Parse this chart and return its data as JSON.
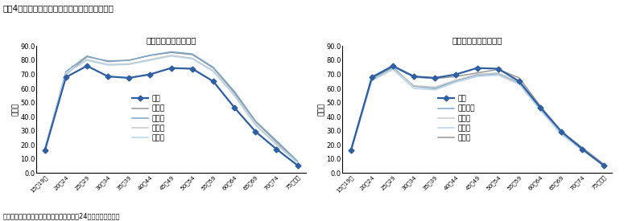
{
  "title": "図表4　女性の年齢階級別有業率（都道府県別）",
  "subtitle1": "（１）　Ｍ字が浅い県",
  "subtitle2": "（２）　Ｍ字が深い県",
  "footnote": "（備考）総務省「就業構造基本調査（平成24年）」より作成。",
  "ylabel": "（％）",
  "ylim": [
    0.0,
    90.0
  ],
  "yticks": [
    0.0,
    10.0,
    20.0,
    30.0,
    40.0,
    50.0,
    60.0,
    70.0,
    80.0,
    90.0
  ],
  "age_labels": [
    "15～19歳",
    "20～24",
    "25～29",
    "30～34",
    "35～39",
    "40～44",
    "45～49",
    "50～54",
    "55～59",
    "60～64",
    "65～69",
    "70～74",
    "75歳以上"
  ],
  "chart1_order": [
    "山形県",
    "福井県",
    "徳島県",
    "高知県",
    "全国"
  ],
  "chart1_series": {
    "全国": [
      16.0,
      68.0,
      76.0,
      68.5,
      67.5,
      70.0,
      74.5,
      74.0,
      65.0,
      46.5,
      29.5,
      17.0,
      5.5
    ],
    "山形県": [
      17.0,
      70.0,
      82.5,
      79.5,
      80.0,
      83.5,
      85.5,
      84.0,
      74.5,
      57.0,
      36.5,
      22.0,
      8.0
    ],
    "福井県": [
      17.0,
      72.0,
      83.0,
      79.0,
      80.0,
      83.5,
      86.0,
      84.5,
      75.0,
      58.0,
      37.0,
      23.0,
      8.5
    ],
    "徳島県": [
      17.0,
      70.5,
      80.5,
      77.0,
      77.5,
      80.5,
      83.5,
      81.5,
      72.5,
      55.5,
      34.5,
      20.5,
      7.5
    ],
    "高知県": [
      17.0,
      71.0,
      80.0,
      76.5,
      77.0,
      80.0,
      83.0,
      81.0,
      72.0,
      55.0,
      34.0,
      20.0,
      7.5
    ]
  },
  "chart1_colors": {
    "全国": "#2E5FA3",
    "山形県": "#999999",
    "福井県": "#7BA7CC",
    "徳島県": "#C8C8C8",
    "高知県": "#B8D4E8"
  },
  "chart2_order": [
    "神奈川県",
    "大阪府",
    "奈良県",
    "東京都",
    "全国"
  ],
  "chart2_series": {
    "全国": [
      16.0,
      68.0,
      76.0,
      68.5,
      67.5,
      70.0,
      74.5,
      74.0,
      65.0,
      46.5,
      29.5,
      17.0,
      5.5
    ],
    "東京都": [
      16.0,
      67.5,
      75.5,
      68.0,
      67.0,
      68.5,
      71.0,
      73.5,
      67.5,
      47.5,
      29.5,
      18.0,
      6.5
    ],
    "神奈川県": [
      15.5,
      66.5,
      75.0,
      61.5,
      60.0,
      65.5,
      69.5,
      70.5,
      64.0,
      45.5,
      28.5,
      17.0,
      6.0
    ],
    "大阪府": [
      15.5,
      66.0,
      74.0,
      62.0,
      61.0,
      66.0,
      70.0,
      71.0,
      64.5,
      46.0,
      29.0,
      17.5,
      6.0
    ],
    "奈良県": [
      15.0,
      65.5,
      73.5,
      60.0,
      59.0,
      64.5,
      68.5,
      69.5,
      63.0,
      44.5,
      27.5,
      16.0,
      5.5
    ]
  },
  "chart2_colors": {
    "全国": "#2E5FA3",
    "東京都": "#999999",
    "神奈川県": "#7BA7CC",
    "大阪府": "#C8C8C8",
    "奈良県": "#B8D4E8"
  }
}
